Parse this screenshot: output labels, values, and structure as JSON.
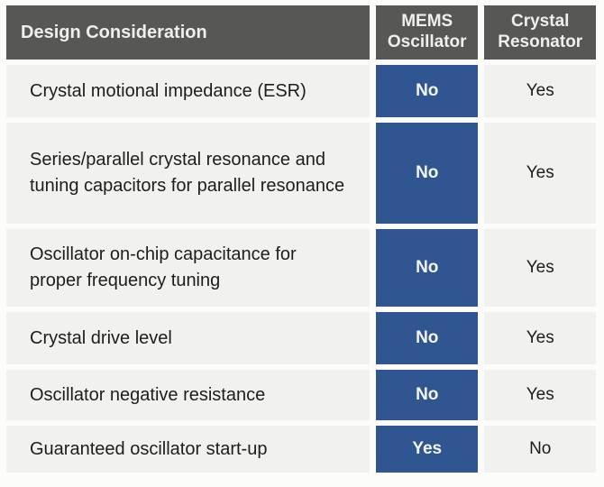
{
  "colors": {
    "header_bg": "#575756",
    "header_text": "#efefee",
    "accent_blue": "#2f5691",
    "text_on_blue": "#f4f4f4",
    "row_bg": "#f1f1f0",
    "body_text": "#1d1d1b",
    "page_bg": "#fcfcfb"
  },
  "table": {
    "header": {
      "consideration": "Design Consideration",
      "mems": "MEMS Oscillator",
      "crystal": "Crystal Resonator"
    },
    "rows": [
      {
        "consideration": "Crystal motional impedance (ESR)",
        "mems": "No",
        "crystal": "Yes"
      },
      {
        "consideration": "Series/parallel crystal resonance and tuning capacitors for parallel resonance",
        "mems": "No",
        "crystal": "Yes"
      },
      {
        "consideration": "Oscillator on-chip capacitance for proper frequency tuning",
        "mems": "No",
        "crystal": "Yes"
      },
      {
        "consideration": "Crystal drive level",
        "mems": "No",
        "crystal": "Yes"
      },
      {
        "consideration": "Oscillator negative resistance",
        "mems": "No",
        "crystal": "Yes"
      },
      {
        "consideration": "Guaranteed oscillator start-up",
        "mems": "Yes",
        "crystal": "No"
      }
    ]
  }
}
